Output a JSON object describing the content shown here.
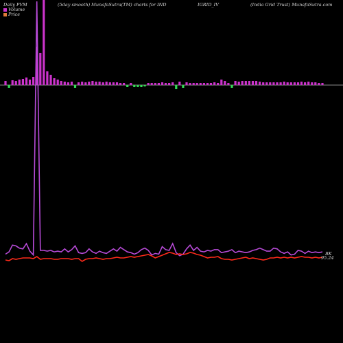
{
  "header": {
    "left": "Daily PVM",
    "smooth": "(5day smooth) MunafaSutra(TM) charts for IND",
    "symbol": "IGRID_IV",
    "company": "(India  Grid Trust) MunafaSutra.com"
  },
  "legend": {
    "volume_label": "Volume",
    "price_label": "Price",
    "volume_color": "#cc33cc",
    "price_color": "#e07b39"
  },
  "colors": {
    "volume_line": "#b84bd8",
    "price_line": "#ff2a1a",
    "up_bar": "#cc33cc",
    "down_bar": "#33dd55",
    "axis": "#bbbbbb"
  },
  "chart_data": {
    "type": "line",
    "end_labels": [
      "BK",
      "95.24"
    ],
    "volume_line": [
      5,
      8,
      17,
      16,
      13,
      12,
      19,
      9,
      4,
      340,
      10,
      10,
      9,
      10,
      8,
      9,
      8,
      12,
      8,
      11,
      16,
      7,
      6,
      7,
      12,
      8,
      6,
      9,
      7,
      6,
      9,
      12,
      9,
      14,
      11,
      8,
      7,
      5,
      7,
      11,
      13,
      10,
      4,
      6,
      5,
      15,
      11,
      10,
      19,
      7,
      3,
      5,
      12,
      17,
      10,
      14,
      9,
      8,
      10,
      9,
      11,
      11,
      7,
      8,
      9,
      11,
      7,
      9,
      8,
      7,
      8,
      10,
      11,
      13,
      11,
      9,
      9,
      13,
      12,
      8,
      6,
      8,
      4,
      5,
      10,
      9,
      6,
      9,
      7,
      8,
      7,
      8
    ],
    "price_line": [
      3,
      2,
      5,
      4,
      5,
      6,
      6,
      6,
      5,
      8,
      4,
      5,
      5,
      5,
      4,
      4,
      5,
      5,
      5,
      4,
      5,
      5,
      1,
      4,
      5,
      5,
      6,
      5,
      4,
      5,
      5,
      6,
      7,
      6,
      6,
      7,
      8,
      7,
      8,
      9,
      10,
      11,
      9,
      6,
      8,
      10,
      12,
      14,
      13,
      11,
      12,
      11,
      12,
      14,
      13,
      11,
      10,
      8,
      6,
      7,
      7,
      8,
      5,
      4,
      4,
      3,
      4,
      5,
      6,
      7,
      5,
      6,
      5,
      4,
      3,
      4,
      6,
      6,
      7,
      6,
      7,
      6,
      7,
      6,
      7,
      8,
      7,
      7,
      6,
      7,
      6,
      7
    ],
    "pvm_bars": [
      6,
      -4,
      7,
      6,
      8,
      9,
      11,
      8,
      12,
      56,
      47,
      150,
      20,
      15,
      10,
      8,
      6,
      5,
      4,
      5,
      -4,
      4,
      5,
      4,
      5,
      6,
      5,
      5,
      4,
      5,
      4,
      4,
      4,
      3,
      3,
      -3,
      3,
      -3,
      -3,
      -3,
      -2,
      3,
      3,
      3,
      3,
      4,
      3,
      3,
      4,
      -6,
      5,
      -4,
      4,
      3,
      3,
      3,
      3,
      3,
      3,
      3,
      4,
      3,
      8,
      6,
      3,
      -4,
      6,
      5,
      6,
      6,
      6,
      6,
      6,
      5,
      4,
      4,
      4,
      4,
      4,
      4,
      5,
      4,
      4,
      4,
      4,
      5,
      4,
      5,
      4,
      4,
      3,
      3
    ]
  }
}
